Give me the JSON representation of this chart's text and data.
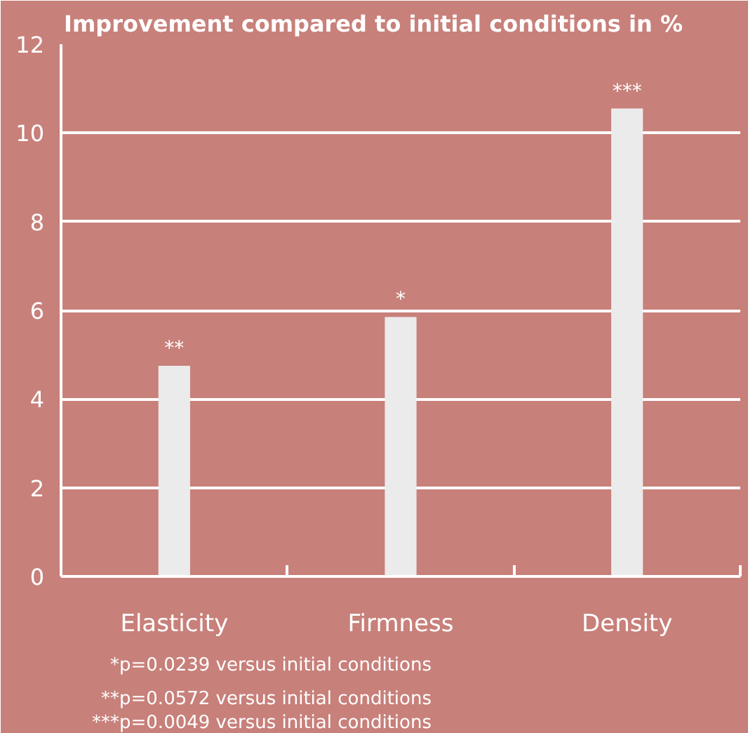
{
  "chart_data": {
    "type": "bar",
    "title": "Improvement compared to initial conditions in %",
    "categories": [
      "Elasticity",
      "Firmness",
      "Density"
    ],
    "values": [
      4.75,
      5.85,
      10.55
    ],
    "color": "#ebebeb",
    "ylim": [
      0,
      12
    ],
    "yticks": [
      0,
      2,
      4,
      6,
      8,
      10,
      12
    ],
    "grid": "y",
    "annotations": [
      {
        "text": "**",
        "x": "Elasticity",
        "y": 4.75
      },
      {
        "text": "*",
        "x": "Firmness",
        "y": 5.85
      },
      {
        "text": "***",
        "x": "Density",
        "y": 10.55
      },
      "*p=0.0239 versus initial conditions",
      "**p=0.0572 versus initial conditions",
      "***p=0.0049 versus initial conditions"
    ]
  }
}
